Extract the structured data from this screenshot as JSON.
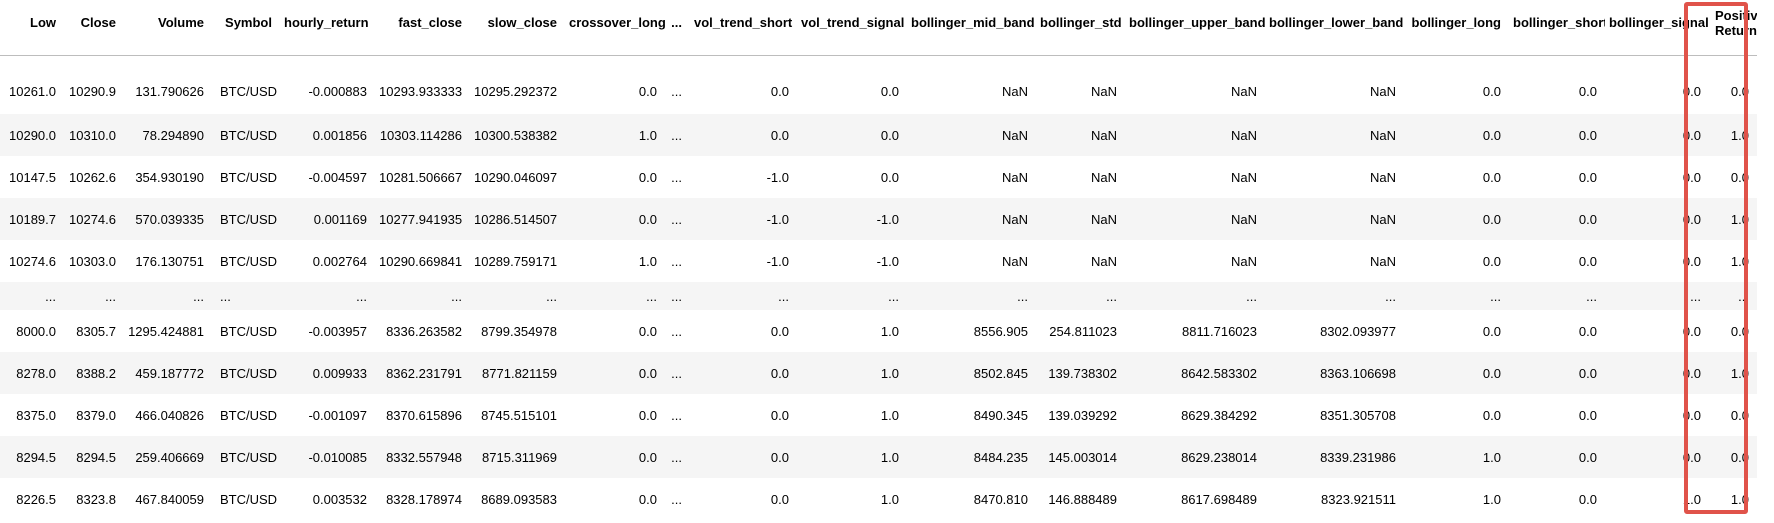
{
  "table": {
    "columns": [
      "Low",
      "Close",
      "Volume",
      "Symbol",
      "hourly_return",
      "fast_close",
      "slow_close",
      "crossover_long",
      "...",
      "vol_trend_short",
      "vol_trend_signal",
      "bollinger_mid_band",
      "bollinger_std",
      "bollinger_upper_band",
      "bollinger_lower_band",
      "bollinger_long",
      "bollinger_short",
      "bollinger_signal",
      "Positive Return"
    ],
    "rows": [
      [
        "10261.0",
        "10290.9",
        "131.790626",
        "BTC/USD",
        "-0.000883",
        "10293.933333",
        "10295.292372",
        "0.0",
        "...",
        "0.0",
        "0.0",
        "NaN",
        "NaN",
        "NaN",
        "NaN",
        "0.0",
        "0.0",
        "0.0",
        "0.0"
      ],
      [
        "10290.0",
        "10310.0",
        "78.294890",
        "BTC/USD",
        "0.001856",
        "10303.114286",
        "10300.538382",
        "1.0",
        "...",
        "0.0",
        "0.0",
        "NaN",
        "NaN",
        "NaN",
        "NaN",
        "0.0",
        "0.0",
        "0.0",
        "1.0"
      ],
      [
        "10147.5",
        "10262.6",
        "354.930190",
        "BTC/USD",
        "-0.004597",
        "10281.506667",
        "10290.046097",
        "0.0",
        "...",
        "-1.0",
        "0.0",
        "NaN",
        "NaN",
        "NaN",
        "NaN",
        "0.0",
        "0.0",
        "0.0",
        "0.0"
      ],
      [
        "10189.7",
        "10274.6",
        "570.039335",
        "BTC/USD",
        "0.001169",
        "10277.941935",
        "10286.514507",
        "0.0",
        "...",
        "-1.0",
        "-1.0",
        "NaN",
        "NaN",
        "NaN",
        "NaN",
        "0.0",
        "0.0",
        "0.0",
        "1.0"
      ],
      [
        "10274.6",
        "10303.0",
        "176.130751",
        "BTC/USD",
        "0.002764",
        "10290.669841",
        "10289.759171",
        "1.0",
        "...",
        "-1.0",
        "-1.0",
        "NaN",
        "NaN",
        "NaN",
        "NaN",
        "0.0",
        "0.0",
        "0.0",
        "1.0"
      ],
      [
        "...",
        "...",
        "...",
        "...",
        "...",
        "...",
        "...",
        "...",
        "...",
        "...",
        "...",
        "...",
        "...",
        "...",
        "...",
        "...",
        "...",
        "...",
        "..."
      ],
      [
        "8000.0",
        "8305.7",
        "1295.424881",
        "BTC/USD",
        "-0.003957",
        "8336.263582",
        "8799.354978",
        "0.0",
        "...",
        "0.0",
        "1.0",
        "8556.905",
        "254.811023",
        "8811.716023",
        "8302.093977",
        "0.0",
        "0.0",
        "0.0",
        "0.0"
      ],
      [
        "8278.0",
        "8388.2",
        "459.187772",
        "BTC/USD",
        "0.009933",
        "8362.231791",
        "8771.821159",
        "0.0",
        "...",
        "0.0",
        "1.0",
        "8502.845",
        "139.738302",
        "8642.583302",
        "8363.106698",
        "0.0",
        "0.0",
        "0.0",
        "1.0"
      ],
      [
        "8375.0",
        "8379.0",
        "466.040826",
        "BTC/USD",
        "-0.001097",
        "8370.615896",
        "8745.515101",
        "0.0",
        "...",
        "0.0",
        "1.0",
        "8490.345",
        "139.039292",
        "8629.384292",
        "8351.305708",
        "0.0",
        "0.0",
        "0.0",
        "0.0"
      ],
      [
        "8294.5",
        "8294.5",
        "259.406669",
        "BTC/USD",
        "-0.010085",
        "8332.557948",
        "8715.311969",
        "0.0",
        "...",
        "0.0",
        "1.0",
        "8484.235",
        "145.003014",
        "8629.238014",
        "8339.231986",
        "1.0",
        "0.0",
        "0.0",
        "0.0"
      ],
      [
        "8226.5",
        "8323.8",
        "467.840059",
        "BTC/USD",
        "0.003532",
        "8328.178974",
        "8689.093583",
        "0.0",
        "...",
        "0.0",
        "1.0",
        "8470.810",
        "146.888489",
        "8617.698489",
        "8323.921511",
        "1.0",
        "0.0",
        "1.0",
        "1.0"
      ]
    ]
  },
  "highlight": {
    "color": "#e0534a",
    "column": "Positive Return"
  }
}
